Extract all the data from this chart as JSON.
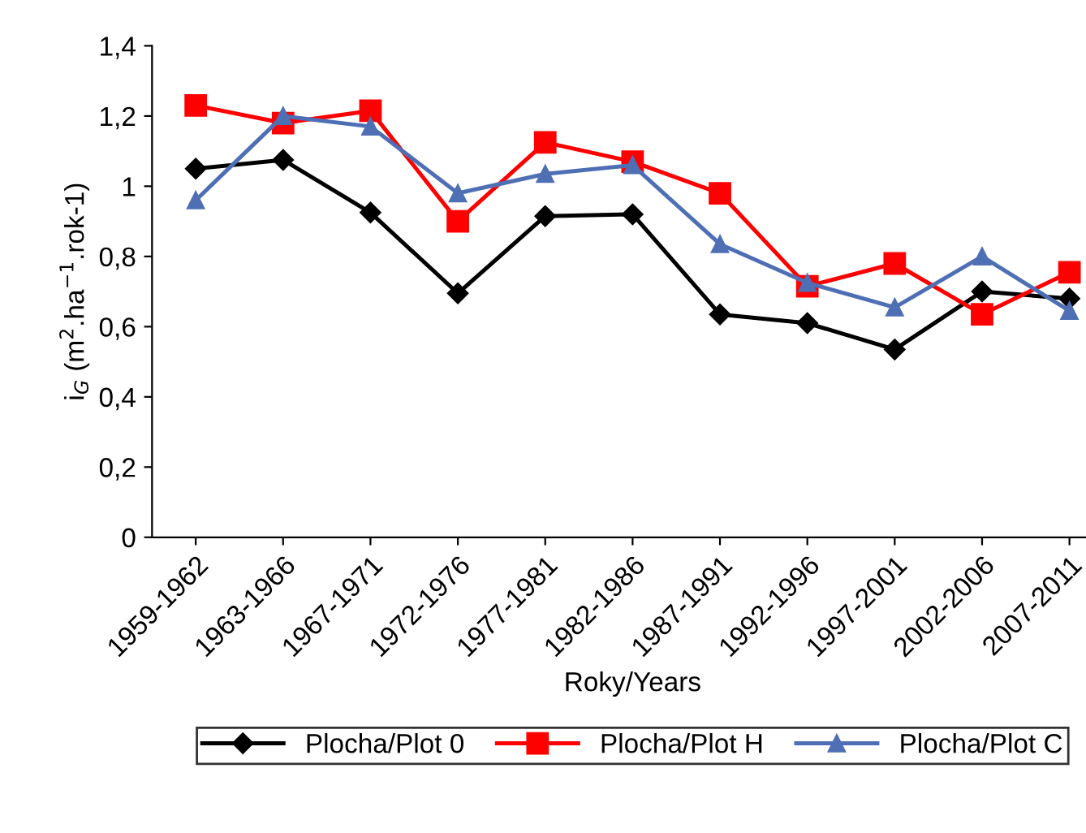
{
  "chart_data": {
    "type": "line",
    "xlabel": "Roky/Years",
    "ylabel": "i$_{G}$ (m$^{2}$.ha$^{−1}$.rok-1)",
    "categories": [
      "1959-1962",
      "1963-1966",
      "1967-1971",
      "1972-1976",
      "1977-1981",
      "1982-1986",
      "1987-1991",
      "1992-1996",
      "1997-2001",
      "2002-2006",
      "2007-2011"
    ],
    "series": [
      {
        "name": "Plocha/Plot 0",
        "color": "#000000",
        "marker": "diamond",
        "values": [
          1.05,
          1.075,
          0.925,
          0.695,
          0.915,
          0.92,
          0.635,
          0.61,
          0.535,
          0.7,
          0.68
        ]
      },
      {
        "name": "Plocha/Plot H",
        "color": "#ff0000",
        "marker": "square",
        "values": [
          1.23,
          1.18,
          1.215,
          0.9,
          1.125,
          1.07,
          0.98,
          0.715,
          0.78,
          0.635,
          0.755
        ]
      },
      {
        "name": "Plocha/Plot C",
        "color": "#4f6fb5",
        "marker": "triangle",
        "values": [
          0.96,
          1.2,
          1.17,
          0.98,
          1.035,
          1.06,
          0.835,
          0.725,
          0.655,
          0.8,
          0.645
        ]
      }
    ],
    "ylim": [
      0,
      1.4
    ],
    "yticks": [
      0,
      {
        "value": 0.2,
        "label": "0,2"
      },
      {
        "value": 0.4,
        "label": "0,4"
      },
      {
        "value": 0.6,
        "label": "0,6"
      },
      {
        "value": 0.8,
        "label": "0,8"
      },
      1,
      {
        "value": 1.2,
        "label": "1,2"
      },
      {
        "value": 1.4,
        "label": "1,4"
      }
    ],
    "grid": false,
    "legend": "bottom",
    "line_style": "solid"
  }
}
